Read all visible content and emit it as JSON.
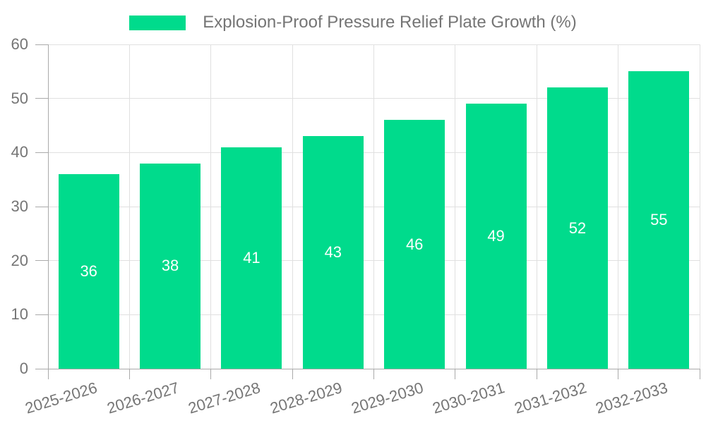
{
  "chart_data": {
    "type": "bar",
    "title": "Explosion-Proof Pressure Relief Plate Growth (%)",
    "categories": [
      "2025-2026",
      "2026-2027",
      "2027-2028",
      "2028-2029",
      "2029-2030",
      "2030-2031",
      "2031-2032",
      "2032-2033"
    ],
    "values": [
      36,
      38,
      41,
      43,
      46,
      49,
      52,
      55
    ],
    "xlabel": "",
    "ylabel": "",
    "ylim": [
      0,
      60
    ],
    "yticks": [
      0,
      10,
      20,
      30,
      40,
      50,
      60
    ],
    "grid": true,
    "legend_position": "top",
    "bar_label_position": "center",
    "x_label_rotation_deg": -17
  },
  "colors": {
    "bar": "#00DB8C",
    "value_text": "#FFFFFF",
    "axis_text": "#757575",
    "title_text": "#757575",
    "grid_line": "#E0E0E0",
    "axis_line": "#AAAAAA",
    "background": "#FFFFFF"
  }
}
